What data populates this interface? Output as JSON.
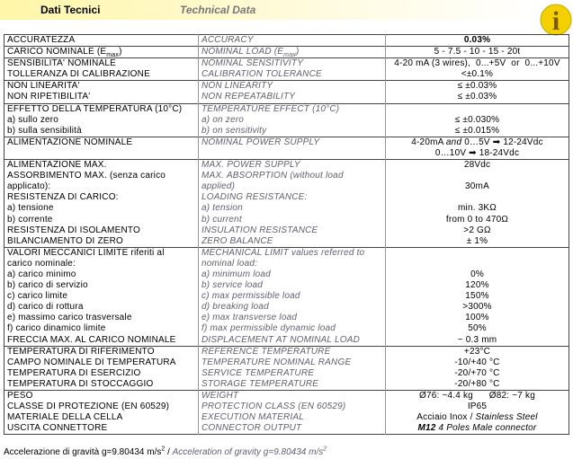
{
  "header": {
    "title_it": "Dati Tecnici",
    "title_en": "Technical Data",
    "icon": "i"
  },
  "table": {
    "sections": [
      {
        "rows": [
          {
            "it": "ACCURATEZZA",
            "en": "ACCURACY",
            "value": [
              {
                "b": "0.03%"
              }
            ]
          }
        ]
      },
      {
        "rows": [
          {
            "it": [
              "CARICO NOMINALE (E",
              {
                "sub": "max"
              },
              ")"
            ],
            "en": [
              "NOMINAL LOAD (E",
              {
                "sub": "max"
              },
              ")"
            ],
            "value": "5 - 7.5 - 10 - 15 - 20t"
          }
        ]
      },
      {
        "rows": [
          {
            "it": "SENSIBILITA' NOMINALE",
            "en": "NOMINAL SENSITIVITY",
            "value": "4-20 mA (3 wires),  0...+5V  or  0...+10V"
          },
          {
            "it": "TOLLERANZA DI CALIBRAZIONE",
            "en": "CALIBRATION TOLERANCE",
            "value": "<±0.1%"
          }
        ]
      },
      {
        "rows": [
          {
            "it": "NON LINEARITA'",
            "en": "NON LINEARITY",
            "value": "≤ ±0.03%"
          },
          {
            "it": "NON RIPETIBILITA'",
            "en": "NON REPEATABILITY",
            "value": "≤ ±0.03%"
          }
        ]
      },
      {
        "rows": [
          {
            "it": "EFFETTO DELLA TEMPERATURA (10°C)",
            "en": "TEMPERATURE EFFECT (10°C)"
          },
          {
            "it": "a) sullo zero",
            "en": "a) on zero",
            "value": "≤ ±0.030%"
          },
          {
            "it": "b) sulla sensibilità",
            "en": "b) on sensitivity",
            "value": "≤ ±0.015%"
          }
        ]
      },
      {
        "rows": [
          {
            "it": "ALIMENTAZIONE NOMINALE",
            "en": "NOMINAL POWER SUPPLY",
            "value": [
              "4-20mA ",
              {
                "i": "and"
              },
              " 0…5V ➡ 12-24Vdc"
            ]
          },
          {
            "value": "0…10V ➡ 18-24Vdc"
          }
        ]
      },
      {
        "rows": [
          {
            "it": "ALIMENTAZIONE MAX.",
            "en": "MAX. POWER SUPPLY",
            "value": "28Vdc"
          },
          {
            "it": "ASSORBIMENTO MAX. (senza carico",
            "en": "MAX. ABSORPTION (without load"
          },
          {
            "it": "applicato):",
            "en": "applied)",
            "value": "30mA"
          },
          {
            "it": "RESISTENZA DI CARICO:",
            "en": "LOADING RESISTANCE:"
          },
          {
            "it": "a) tensione",
            "en": "a) tension",
            "value": "min. 3KΩ"
          },
          {
            "it": "b) corrente",
            "en": "b) current",
            "value": "from 0 to 470Ω"
          },
          {
            "it": "RESISTENZA DI ISOLAMENTO",
            "en": "INSULATION RESISTANCE",
            "value": ">2 GΩ"
          },
          {
            "it": "BILANCIAMENTO DI ZERO",
            "en": "ZERO BALANCE",
            "value": "± 1%"
          }
        ]
      },
      {
        "rows": [
          {
            "it": "VALORI MECCANICI LIMITE riferiti al",
            "en": "MECHANICAL LIMIT values referred to"
          },
          {
            "it": "carico nominale:",
            "en": "nominal load:"
          },
          {
            "it": "a) carico minimo",
            "en": "a) minimum load",
            "value": "0%"
          },
          {
            "it": "b) carico di servizio",
            "en": "b) service load",
            "value": "120%"
          },
          {
            "it": "c) carico limite",
            "en": "c) max permissible load",
            "value": "150%"
          },
          {
            "it": "d) carico di rottura",
            "en": "d) breaking load",
            "value": ">300%"
          },
          {
            "it": "e) massimo carico trasversale",
            "en": "e) max transverse load",
            "value": "100%"
          },
          {
            "it": "f) carico dinamico limite",
            "en": "f) max permissible dynamic load",
            "value": "50%"
          },
          {
            "it": "FRECCIA MAX. AL CARICO NOMINALE",
            "en": "DISPLACEMENT AT NOMINAL LOAD",
            "value": "~ 0.3 mm"
          }
        ]
      },
      {
        "rows": [
          {
            "it": "TEMPERATURA DI RIFERIMENTO",
            "en": "REFERENCE TEMPERATURE",
            "value": "+23°C"
          },
          {
            "it": "CAMPO NOMINALE DI TEMPERATURA",
            "en": "TEMPERATURE NOMINAL RANGE",
            "value": "-10/+40 °C"
          },
          {
            "it": "TEMPERATURA DI ESERCIZIO",
            "en": "SERVICE TEMPERATURE",
            "value": "-20/+70 °C"
          },
          {
            "it": "TEMPERATURA DI STOCCAGGIO",
            "en": "STORAGE TEMPERATURE",
            "value": "-20/+80 °C"
          }
        ]
      },
      {
        "rows": [
          {
            "it": "PESO",
            "en": "WEIGHT",
            "value": "Ø76: ~4.4 kg      Ø82: ~7 kg"
          },
          {
            "it": "CLASSE DI PROTEZIONE (EN 60529)",
            "en": "PROTECTION CLASS (EN 60529)",
            "value": "IP65"
          },
          {
            "it": "MATERIALE DELLA CELLA",
            "en": "EXECUTION MATERIAL",
            "value": [
              "Acciaio Inox / ",
              {
                "i": "Stainless Steel"
              }
            ]
          },
          {
            "it": "USCITA CONNETTORE",
            "en": "CONNECTOR OUTPUT",
            "value": [
              {
                "bi": "M12"
              },
              {
                "i": " 4 Poles Male connector"
              }
            ]
          }
        ]
      }
    ]
  },
  "footer": {
    "it": [
      "Accelerazione di gravità g=9.80434 m/s",
      {
        "sup": "2"
      }
    ],
    "sep": " / ",
    "en": [
      "Acceleration of gravity g=9.80434 m/s",
      {
        "sup": "2"
      }
    ]
  }
}
